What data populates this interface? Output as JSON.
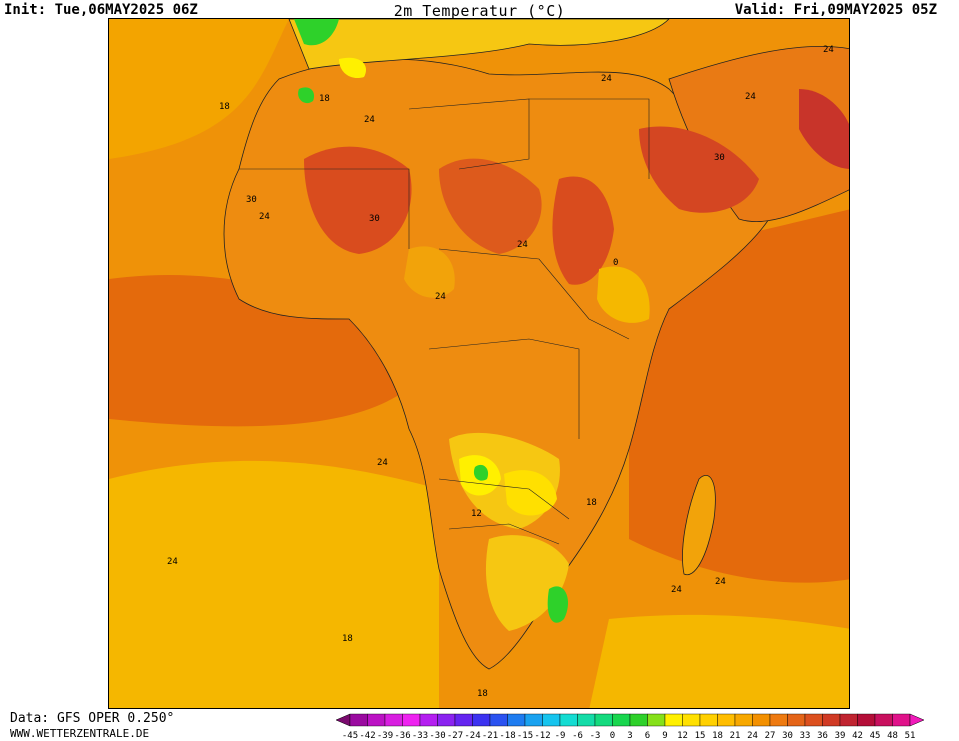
{
  "header": {
    "init": "Init: Tue,06MAY2025 06Z",
    "title": "2m Temperatur (°C)",
    "valid": "Valid: Fri,09MAY2025 05Z"
  },
  "footer": {
    "data_source": "Data: GFS OPER 0.250°",
    "website": "WWW.WETTERZENTRALE.DE"
  },
  "colors": {
    "ocean_cool": "#f5b700",
    "ocean_warm": "#e46a0c",
    "land_mid": "#ee8c10",
    "land_hot": "#d94c1e",
    "land_cool": "#f6c712",
    "cold_green": "#2ed12a"
  },
  "contour_labels": [
    "18",
    "18",
    "24",
    "24",
    "24",
    "24",
    "24",
    "24",
    "24",
    "24",
    "24",
    "24",
    "24",
    "30",
    "30",
    "30",
    "12",
    "18",
    "18",
    "18",
    "0"
  ],
  "legend": {
    "labels": [
      "-45",
      "-42",
      "-39",
      "-36",
      "-33",
      "-30",
      "-27",
      "-24",
      "-21",
      "-18",
      "-15",
      "-12",
      "-9",
      "-6",
      "-3",
      "0",
      "3",
      "6",
      "9",
      "12",
      "15",
      "18",
      "21",
      "24",
      "27",
      "30",
      "33",
      "36",
      "39",
      "42",
      "45",
      "48",
      "51"
    ],
    "colors": [
      "#7a0a6e",
      "#9a0aa0",
      "#bb12c4",
      "#d81ee0",
      "#ee22f0",
      "#b41ef0",
      "#8a22f0",
      "#6424f0",
      "#3c32f0",
      "#2a52f0",
      "#1e7cf0",
      "#1aa2f0",
      "#16c4ee",
      "#14dcd2",
      "#14dca8",
      "#14da7e",
      "#18d64e",
      "#2ed12a",
      "#86e01a",
      "#fff000",
      "#ffe000",
      "#ffd000",
      "#ffbd00",
      "#f7a800",
      "#f39000",
      "#ee7a10",
      "#e46418",
      "#dc501e",
      "#d03a24",
      "#c02430",
      "#b40e38",
      "#c8105e",
      "#e0128a",
      "#f01aba"
    ]
  }
}
